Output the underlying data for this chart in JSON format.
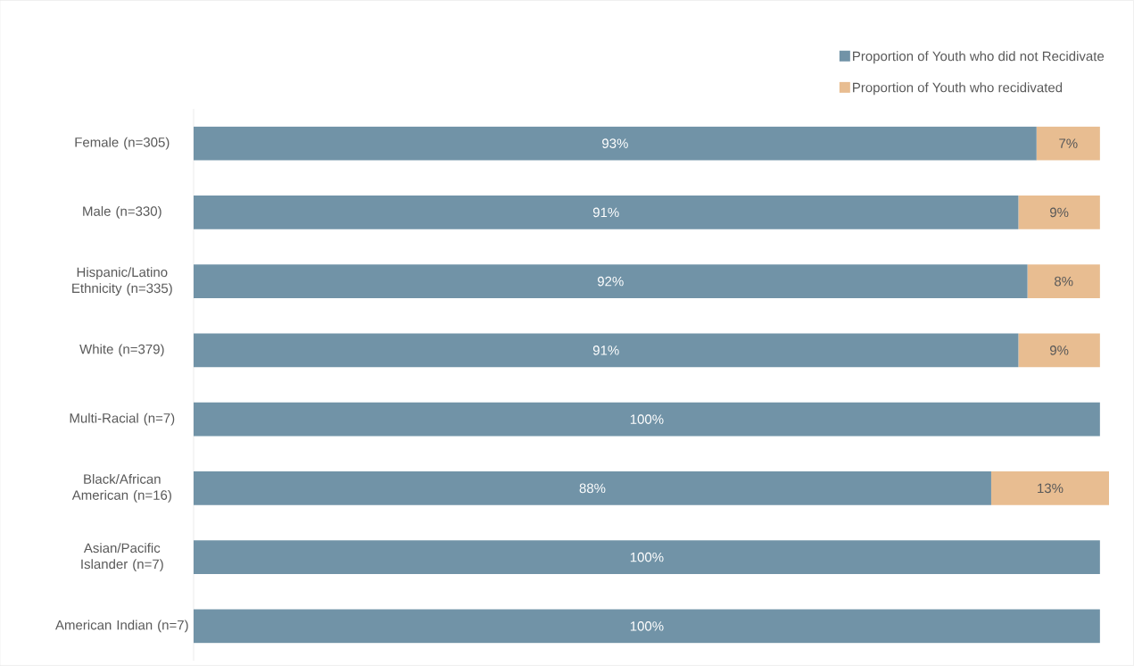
{
  "chart_data": {
    "type": "bar",
    "orientation": "horizontal",
    "stacked": true,
    "legend": "top right",
    "categories": [
      "Female (n=305)",
      "Male (n=330)",
      "Hispanic/Latino Ethnicity (n=335)",
      "White (n=379)",
      "Multi-Racial (n=7)",
      "Black/African American (n=16)",
      "Asian/Pacific Islander (n=7)",
      "American Indian (n=7)"
    ],
    "series": [
      {
        "name": "Proportion of Youth who did not Recidivate",
        "color": "#7193a7",
        "values": [
          93,
          91,
          92,
          91,
          100,
          88,
          100,
          100
        ],
        "value_labels": [
          "93%",
          "91%",
          "92%",
          "91%",
          "100%",
          "88%",
          "100%",
          "100%"
        ]
      },
      {
        "name": "Proportion of Youth who recidivated",
        "color": "#e8bd91",
        "values": [
          7,
          9,
          8,
          9,
          0,
          13,
          0,
          0
        ],
        "value_labels": [
          "7%",
          "9%",
          "8%",
          "9%",
          null,
          "13%",
          null,
          null
        ]
      }
    ]
  }
}
